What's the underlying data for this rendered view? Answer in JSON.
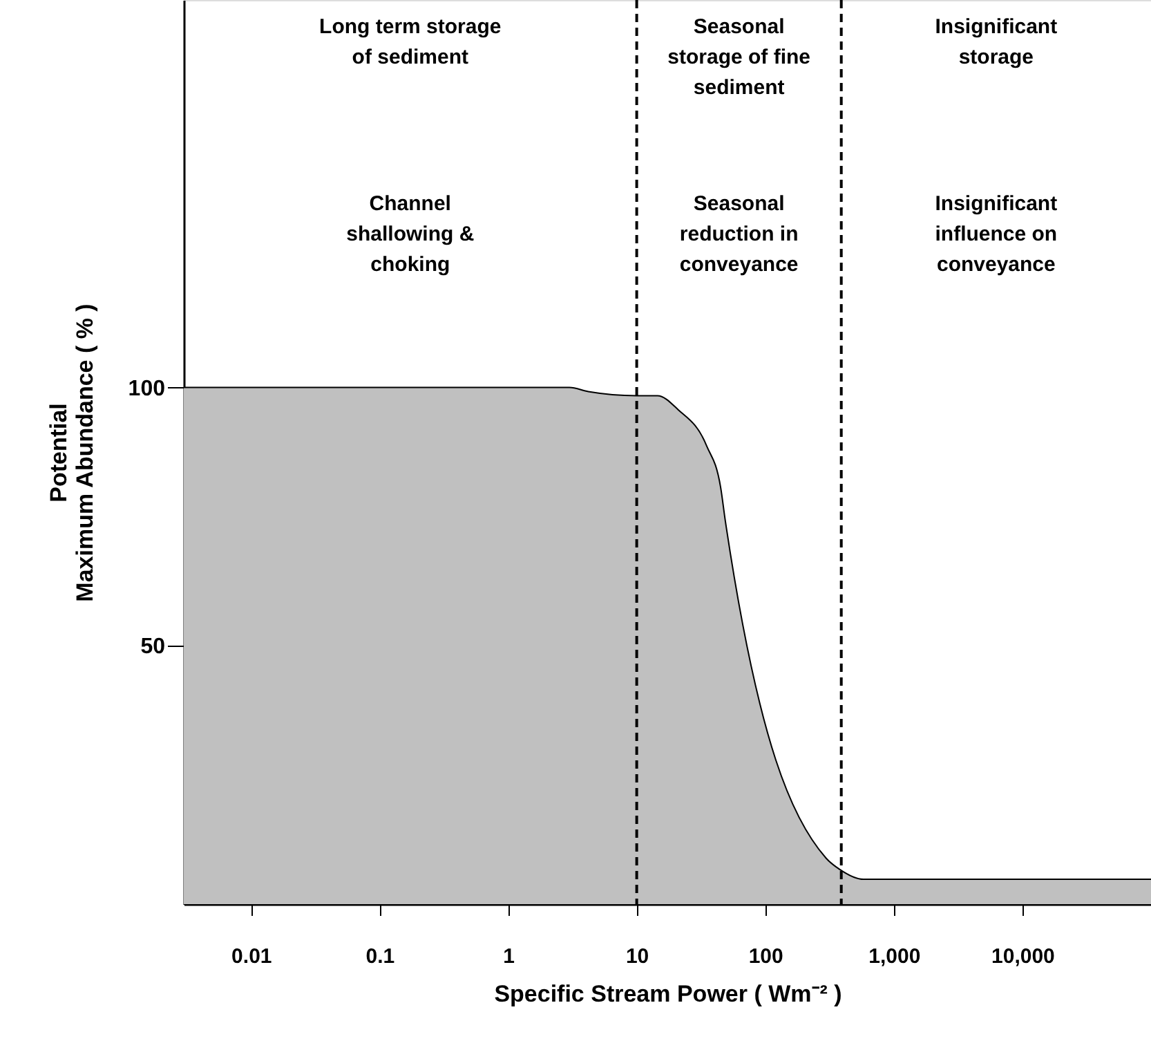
{
  "chart_data": {
    "type": "area",
    "xlabel": "Specific Stream Power ( Wm⁻² )",
    "ylabel": "Potential\nMaximum Abundance ( % )",
    "log": "x",
    "grid": false,
    "x": [
      0.003,
      3,
      4.2,
      10,
      14.5,
      21,
      35,
      45,
      49,
      297,
      380,
      580,
      100000
    ],
    "series": [
      {
        "color": "#c0c0c0",
        "values": [
          100,
          100,
          99.2,
          98.4,
          98.4,
          95.7,
          88.7,
          80.6,
          74,
          8.9,
          6.7,
          4.8,
          4.8
        ]
      }
    ],
    "xlim": [
      0.003,
      100000
    ],
    "xticks": [
      0.01,
      0.1,
      1,
      10,
      100,
      {
        "value": 1000,
        "label": "1,000"
      },
      {
        "value": 10000,
        "label": "10,000"
      }
    ],
    "ylim": [
      0,
      175
    ],
    "yticks": [
      50,
      100
    ],
    "ref_lines": [
      {
        "axis": "x",
        "value": 10,
        "color": "#000000",
        "line_style": "dashed"
      },
      {
        "axis": "x",
        "value": 390,
        "color": "#000000",
        "line_style": "dashed"
      }
    ],
    "annotations": [
      "Long term storage\nof sediment",
      "Seasonal\nstorage of fine\nsediment",
      "Insignificant\nstorage",
      "Channel\nshallowing &\nchoking",
      "Seasonal\nreduction in\nconveyance",
      "Insignificant\ninfluence on\nconveyance"
    ]
  }
}
